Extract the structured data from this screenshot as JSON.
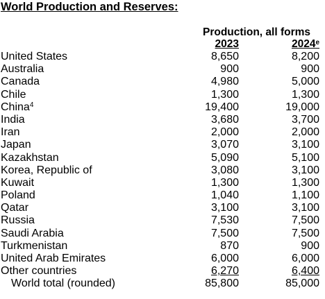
{
  "title": "World Production and Reserves:",
  "table": {
    "group_header": "Production, all forms",
    "columns": [
      {
        "label": "2023",
        "footnote": ""
      },
      {
        "label": "2024",
        "footnote": "e"
      }
    ],
    "rows": [
      {
        "country": "United States",
        "footnote": "",
        "v2023": "8,650",
        "v2024": "8,200"
      },
      {
        "country": "Australia",
        "footnote": "",
        "v2023": "900",
        "v2024": "900"
      },
      {
        "country": "Canada",
        "footnote": "",
        "v2023": "4,980",
        "v2024": "5,000"
      },
      {
        "country": "Chile",
        "footnote": "",
        "v2023": "1,300",
        "v2024": "1,300"
      },
      {
        "country": "China",
        "footnote": "4",
        "v2023": "19,400",
        "v2024": "19,000"
      },
      {
        "country": "India",
        "footnote": "",
        "v2023": "3,680",
        "v2024": "3,700"
      },
      {
        "country": "Iran",
        "footnote": "",
        "v2023": "2,000",
        "v2024": "2,000"
      },
      {
        "country": "Japan",
        "footnote": "",
        "v2023": "3,070",
        "v2024": "3,100"
      },
      {
        "country": "Kazakhstan",
        "footnote": "",
        "v2023": "5,090",
        "v2024": "5,100"
      },
      {
        "country": "Korea, Republic of",
        "footnote": "",
        "v2023": "3,080",
        "v2024": "3,100"
      },
      {
        "country": "Kuwait",
        "footnote": "",
        "v2023": "1,300",
        "v2024": "1,300"
      },
      {
        "country": "Poland",
        "footnote": "",
        "v2023": "1,040",
        "v2024": "1,100"
      },
      {
        "country": "Qatar",
        "footnote": "",
        "v2023": "3,100",
        "v2024": "3,100"
      },
      {
        "country": "Russia",
        "footnote": "",
        "v2023": "7,530",
        "v2024": "7,500"
      },
      {
        "country": "Saudi Arabia",
        "footnote": "",
        "v2023": "7,500",
        "v2024": "7,500"
      },
      {
        "country": "Turkmenistan",
        "footnote": "",
        "v2023": "870",
        "v2024": "900"
      },
      {
        "country": "United Arab Emirates",
        "footnote": "",
        "v2023": "6,000",
        "v2024": "6,000"
      },
      {
        "country": "Other countries",
        "footnote": "",
        "v2023": "6,270",
        "v2024": "6,400"
      }
    ],
    "total": {
      "label": "World total (rounded)",
      "v2023": "85,800",
      "v2024": "85,000"
    }
  }
}
